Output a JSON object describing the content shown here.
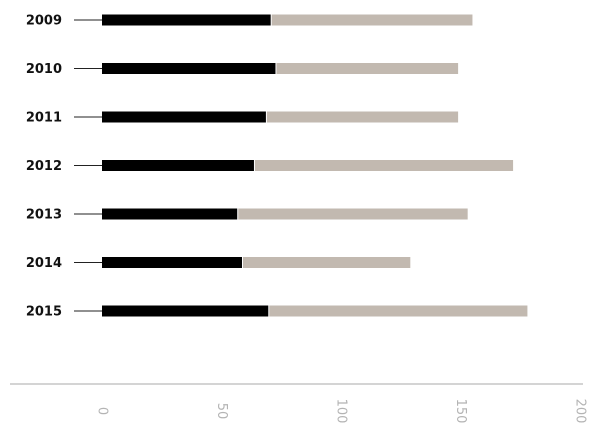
{
  "chart_data": {
    "type": "bar",
    "orientation": "horizontal",
    "stacked": true,
    "categories": [
      "2009",
      "2010",
      "2011",
      "2012",
      "2013",
      "2014",
      "2015"
    ],
    "series": [
      {
        "values": [
          71,
          73,
          69,
          64,
          57,
          59,
          70
        ]
      },
      {
        "values": [
          84,
          76,
          80,
          108,
          96,
          70,
          108
        ]
      }
    ],
    "x_ticks": [
      "0",
      "50",
      "100",
      "150",
      "200"
    ],
    "xlim": [
      0,
      200
    ],
    "grid": false,
    "legend": "none",
    "colors": {
      "series_1": "#000000",
      "series_2": "#c2b9b0",
      "axis": "#a8a8a8",
      "leader": "#222222",
      "tick_text": "#b4b4b4"
    }
  }
}
